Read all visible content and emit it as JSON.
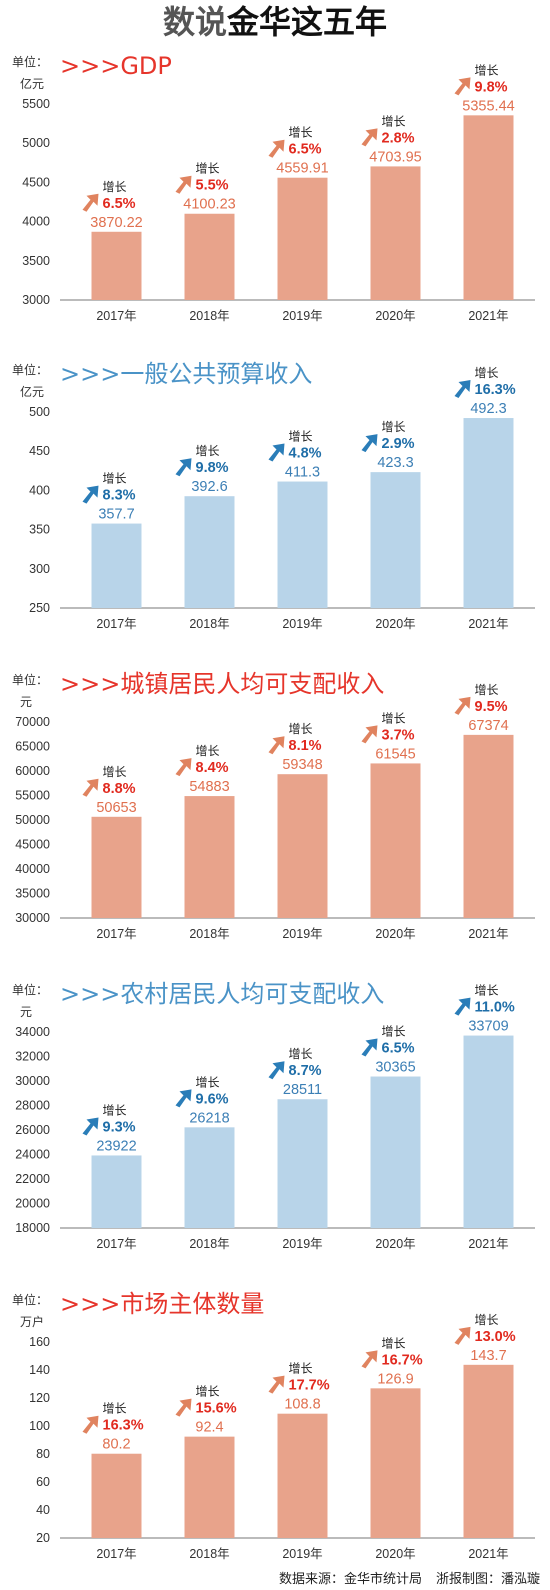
{
  "title": {
    "part1": "数说",
    "part2": "金华这五年"
  },
  "colors": {
    "red": "#e6352b",
    "blue": "#4a93c7",
    "bar_red": "#e8a38b",
    "bar_blue": "#b8d4e9",
    "val_red": "#e0704f",
    "val_blue": "#3c7fb5",
    "pct_red": "#e12a1f",
    "pct_blue": "#1f6ea8",
    "axis_text": "#333333"
  },
  "charts": [
    {
      "unit_label": "单位：",
      "unit": "亿元",
      "title": ">>>GDP",
      "color": "red"
    },
    {
      "unit_label": "单位：",
      "unit": "亿元",
      "title": ">>>一般公共预算收入",
      "color": "blue"
    },
    {
      "unit_label": "单位：",
      "unit": "元",
      "title": ">>>城镇居民人均可支配收入",
      "color": "red"
    },
    {
      "unit_label": "单位：",
      "unit": "元",
      "title": ">>>农村居民人均可支配收入",
      "color": "blue"
    },
    {
      "unit_label": "单位：",
      "unit": "万户",
      "title": ">>>市场主体数量",
      "color": "red"
    }
  ],
  "chart_data": [
    {
      "type": "bar",
      "title": ">>>GDP",
      "ylabel": "亿元",
      "categories": [
        "2017年",
        "2018年",
        "2019年",
        "2020年",
        "2021年"
      ],
      "values": [
        3870.22,
        4100.23,
        4559.91,
        4703.95,
        5355.44
      ],
      "labels": [
        "3870.22",
        "4100.23",
        "4559.91",
        "4703.95",
        "5355.44"
      ],
      "growth_label": "增长",
      "growth": [
        "6.5%",
        "5.5%",
        "6.5%",
        "2.8%",
        "9.8%"
      ],
      "ylim": [
        3000,
        5500
      ],
      "yticks": [
        3000,
        3500,
        4000,
        4500,
        5000,
        5500
      ]
    },
    {
      "type": "bar",
      "title": ">>>一般公共预算收入",
      "ylabel": "亿元",
      "categories": [
        "2017年",
        "2018年",
        "2019年",
        "2020年",
        "2021年"
      ],
      "values": [
        357.7,
        392.6,
        411.3,
        423.3,
        492.3
      ],
      "labels": [
        "357.7",
        "392.6",
        "411.3",
        "423.3",
        "492.3"
      ],
      "growth_label": "增长",
      "growth": [
        "8.3%",
        "9.8%",
        "4.8%",
        "2.9%",
        "16.3%"
      ],
      "ylim": [
        250,
        500
      ],
      "yticks": [
        250,
        300,
        350,
        400,
        450,
        500
      ]
    },
    {
      "type": "bar",
      "title": ">>>城镇居民人均可支配收入",
      "ylabel": "元",
      "categories": [
        "2017年",
        "2018年",
        "2019年",
        "2020年",
        "2021年"
      ],
      "values": [
        50653,
        54883,
        59348,
        61545,
        67374
      ],
      "labels": [
        "50653",
        "54883",
        "59348",
        "61545",
        "67374"
      ],
      "growth_label": "增长",
      "growth": [
        "8.8%",
        "8.4%",
        "8.1%",
        "3.7%",
        "9.5%"
      ],
      "ylim": [
        30000,
        70000
      ],
      "yticks": [
        30000,
        35000,
        40000,
        45000,
        50000,
        55000,
        60000,
        65000,
        70000
      ]
    },
    {
      "type": "bar",
      "title": ">>>农村居民人均可支配收入",
      "ylabel": "元",
      "categories": [
        "2017年",
        "2018年",
        "2019年",
        "2020年",
        "2021年"
      ],
      "values": [
        23922,
        26218,
        28511,
        30365,
        33709
      ],
      "labels": [
        "23922",
        "26218",
        "28511",
        "30365",
        "33709"
      ],
      "growth_label": "增长",
      "growth": [
        "9.3%",
        "9.6%",
        "8.7%",
        "6.5%",
        "11.0%"
      ],
      "ylim": [
        18000,
        34000
      ],
      "yticks": [
        18000,
        20000,
        22000,
        24000,
        26000,
        28000,
        30000,
        32000,
        34000
      ]
    },
    {
      "type": "bar",
      "title": ">>>市场主体数量",
      "ylabel": "万户",
      "categories": [
        "2017年",
        "2018年",
        "2019年",
        "2020年",
        "2021年"
      ],
      "values": [
        80.2,
        92.4,
        108.8,
        126.9,
        143.7
      ],
      "labels": [
        "80.2",
        "92.4",
        "108.8",
        "126.9",
        "143.7"
      ],
      "growth_label": "增长",
      "growth": [
        "16.3%",
        "15.6%",
        "17.7%",
        "16.7%",
        "13.0%"
      ],
      "ylim": [
        20,
        160
      ],
      "yticks": [
        20,
        40,
        60,
        80,
        100,
        120,
        140,
        160
      ]
    }
  ],
  "footer": {
    "source": "数据来源：金华市统计局",
    "credit": "浙报制图：潘泓璇"
  }
}
